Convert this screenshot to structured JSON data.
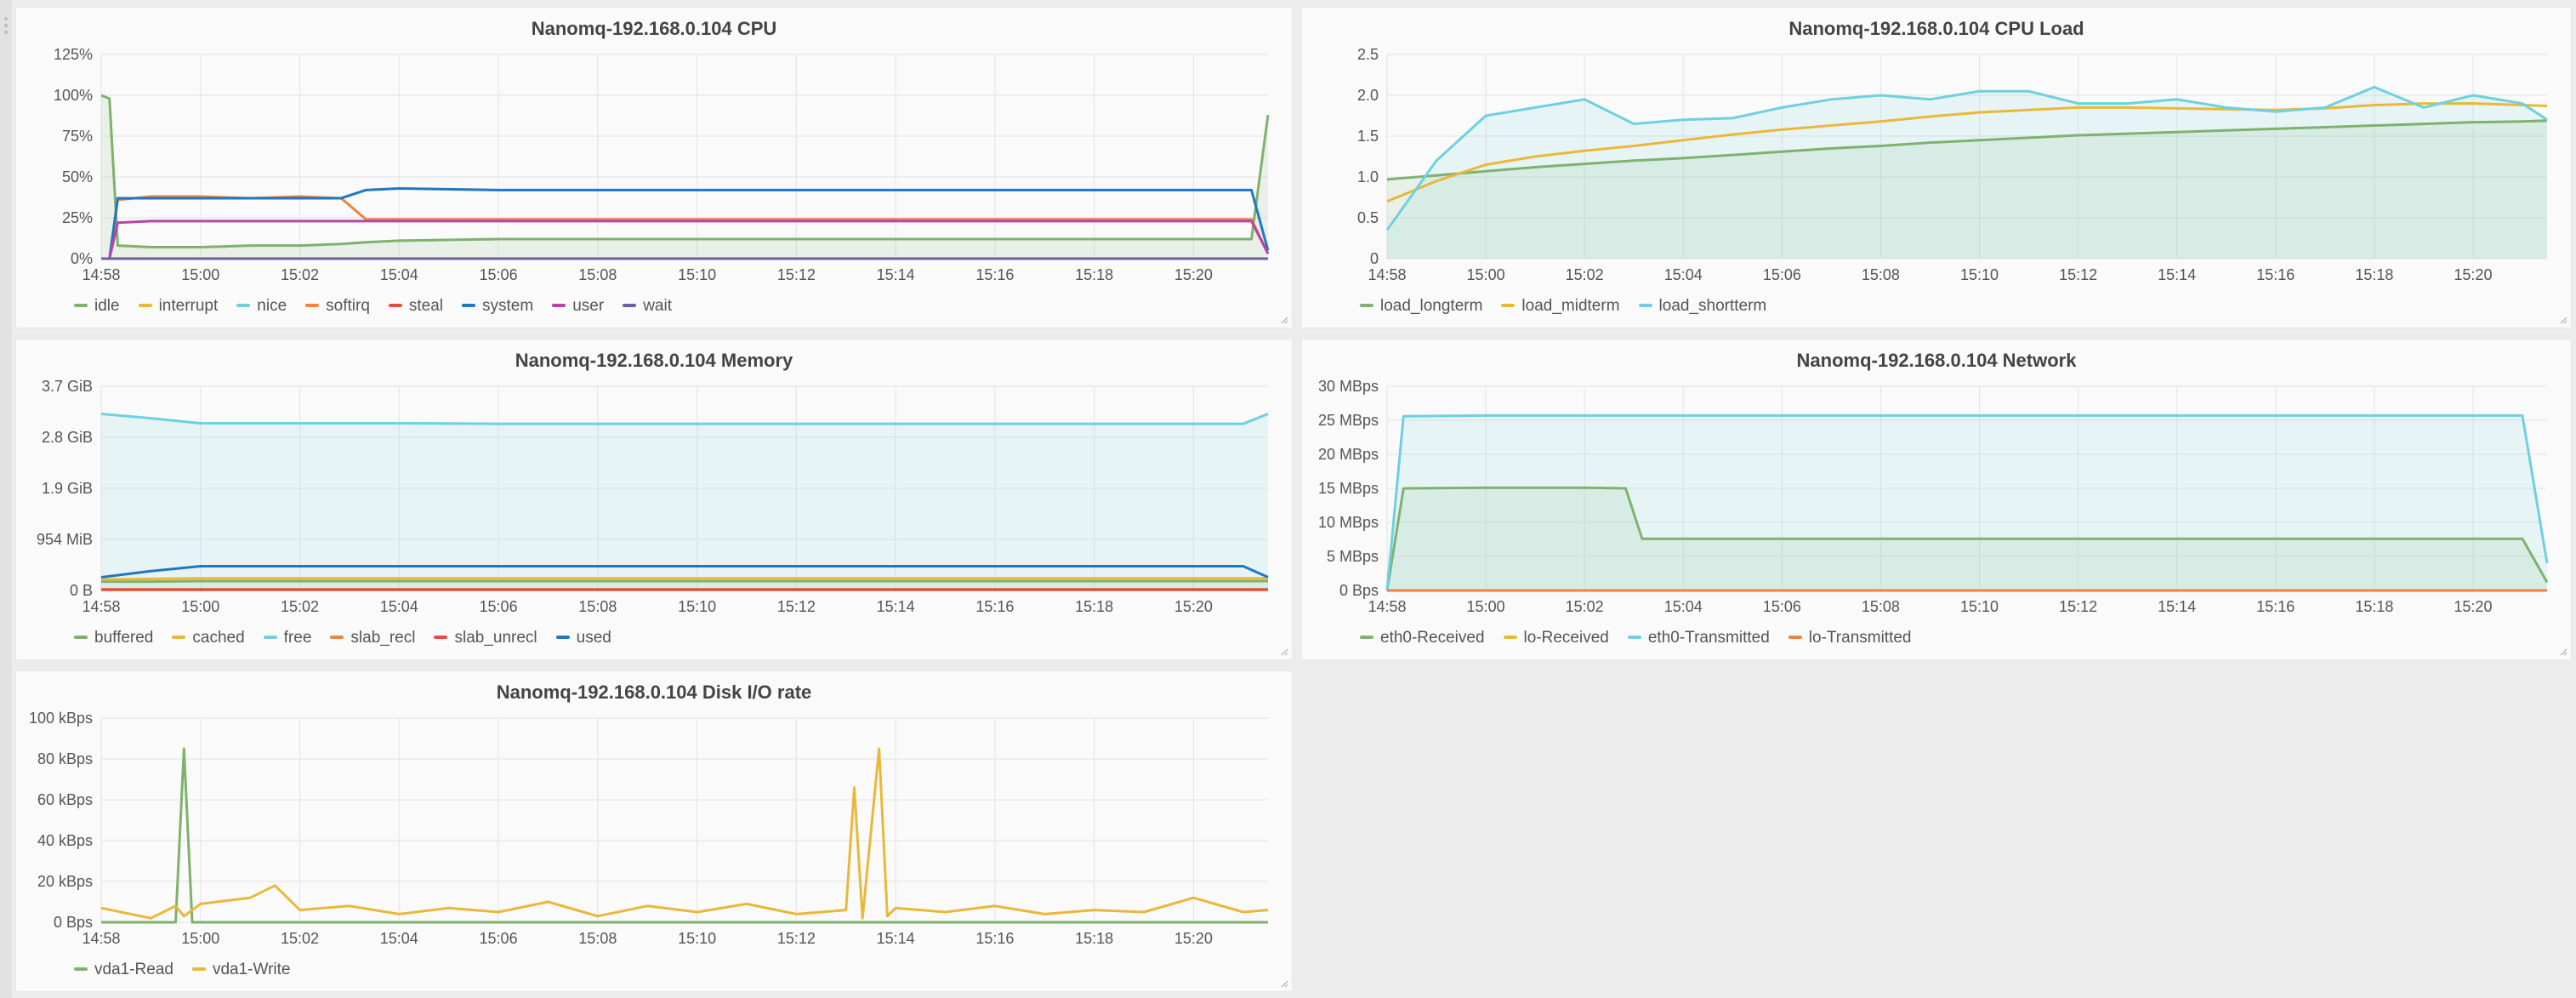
{
  "panels": [
    {
      "key": "cpu",
      "title": "Nanomq-192.168.0.104 CPU",
      "legend": [
        {
          "name": "idle",
          "color": "#7eb26d"
        },
        {
          "name": "interrupt",
          "color": "#eab839"
        },
        {
          "name": "nice",
          "color": "#6ed0e0"
        },
        {
          "name": "softirq",
          "color": "#ef843c"
        },
        {
          "name": "steal",
          "color": "#e24d42"
        },
        {
          "name": "system",
          "color": "#1f78c1"
        },
        {
          "name": "user",
          "color": "#ba43a9"
        },
        {
          "name": "wait",
          "color": "#705da0"
        }
      ]
    },
    {
      "key": "load",
      "title": "Nanomq-192.168.0.104 CPU Load",
      "legend": [
        {
          "name": "load_longterm",
          "color": "#7eb26d"
        },
        {
          "name": "load_midterm",
          "color": "#eab839"
        },
        {
          "name": "load_shortterm",
          "color": "#6ed0e0"
        }
      ]
    },
    {
      "key": "memory",
      "title": "Nanomq-192.168.0.104 Memory",
      "legend": [
        {
          "name": "buffered",
          "color": "#7eb26d"
        },
        {
          "name": "cached",
          "color": "#eab839"
        },
        {
          "name": "free",
          "color": "#6ed0e0"
        },
        {
          "name": "slab_recl",
          "color": "#ef843c"
        },
        {
          "name": "slab_unrecl",
          "color": "#e24d42"
        },
        {
          "name": "used",
          "color": "#1f78c1"
        }
      ]
    },
    {
      "key": "network",
      "title": "Nanomq-192.168.0.104 Network",
      "legend": [
        {
          "name": "eth0-Received",
          "color": "#7eb26d"
        },
        {
          "name": "lo-Received",
          "color": "#eab839"
        },
        {
          "name": "eth0-Transmitted",
          "color": "#6ed0e0"
        },
        {
          "name": "lo-Transmitted",
          "color": "#ef843c"
        }
      ]
    },
    {
      "key": "disk",
      "title": "Nanomq-192.168.0.104 Disk I/O rate",
      "legend": [
        {
          "name": "vda1-Read",
          "color": "#7eb26d"
        },
        {
          "name": "vda1-Write",
          "color": "#eab839"
        }
      ]
    }
  ],
  "chart_data": [
    {
      "type": "line",
      "title": "Nanomq-192.168.0.104 CPU",
      "x_unit": "time (HH:MM)",
      "x_range": [
        "14:58",
        "15:21:30"
      ],
      "x_ticks": [
        "14:58",
        "15:00",
        "15:02",
        "15:04",
        "15:06",
        "15:08",
        "15:10",
        "15:12",
        "15:14",
        "15:16",
        "15:18",
        "15:20"
      ],
      "y_ticks": [
        "0%",
        "25%",
        "50%",
        "75%",
        "100%",
        "125%"
      ],
      "ylim": [
        0,
        125
      ],
      "grid": true,
      "legend_position": "bottom",
      "x": [
        "14:58",
        "14:58:10",
        "14:58:20",
        "14:59",
        "15:00",
        "15:01",
        "15:02",
        "15:02:50",
        "15:03:20",
        "15:04",
        "15:06",
        "15:08",
        "15:10",
        "15:12",
        "15:14",
        "15:16",
        "15:18",
        "15:20",
        "15:21",
        "15:21:10",
        "15:21:30"
      ],
      "series": [
        {
          "name": "idle",
          "fill": true,
          "values": [
            100,
            98,
            8,
            7,
            7,
            8,
            8,
            9,
            10,
            11,
            12,
            12,
            12,
            12,
            12,
            12,
            12,
            12,
            12,
            12,
            88
          ]
        },
        {
          "name": "interrupt",
          "values": [
            0,
            0,
            0,
            0,
            0,
            0,
            0,
            0,
            0,
            0,
            0,
            0,
            0,
            0,
            0,
            0,
            0,
            0,
            0,
            0,
            0
          ]
        },
        {
          "name": "nice",
          "values": [
            0,
            0,
            0,
            0,
            0,
            0,
            0,
            0,
            0,
            0,
            0,
            0,
            0,
            0,
            0,
            0,
            0,
            0,
            0,
            0,
            0
          ]
        },
        {
          "name": "softirq",
          "values": [
            0,
            0,
            36,
            38,
            38,
            37,
            38,
            37,
            24,
            24,
            24,
            24,
            24,
            24,
            24,
            24,
            24,
            24,
            24,
            24,
            3
          ]
        },
        {
          "name": "steal",
          "values": [
            0,
            0,
            0,
            0,
            0,
            0,
            0,
            0,
            0,
            0,
            0,
            0,
            0,
            0,
            0,
            0,
            0,
            0,
            0,
            0,
            0
          ]
        },
        {
          "name": "system",
          "values": [
            0,
            0,
            37,
            37,
            37,
            37,
            37,
            37,
            42,
            43,
            42,
            42,
            42,
            42,
            42,
            42,
            42,
            42,
            42,
            42,
            5
          ]
        },
        {
          "name": "user",
          "values": [
            0,
            0,
            22,
            23,
            23,
            23,
            23,
            23,
            23,
            23,
            23,
            23,
            23,
            23,
            23,
            23,
            23,
            23,
            23,
            23,
            3
          ]
        },
        {
          "name": "wait",
          "values": [
            0,
            0,
            0,
            0,
            0,
            0,
            0,
            0,
            0,
            0,
            0,
            0,
            0,
            0,
            0,
            0,
            0,
            0,
            0,
            0,
            0
          ]
        }
      ]
    },
    {
      "type": "line",
      "title": "Nanomq-192.168.0.104 CPU Load",
      "x_unit": "time (HH:MM)",
      "x_range": [
        "14:58",
        "15:21:30"
      ],
      "x_ticks": [
        "14:58",
        "15:00",
        "15:02",
        "15:04",
        "15:06",
        "15:08",
        "15:10",
        "15:12",
        "15:14",
        "15:16",
        "15:18",
        "15:20"
      ],
      "y_ticks": [
        "0",
        "0.5",
        "1.0",
        "1.5",
        "2.0",
        "2.5"
      ],
      "ylim": [
        0,
        2.5
      ],
      "grid": true,
      "legend_position": "bottom",
      "x": [
        "14:58",
        "14:59",
        "15:00",
        "15:01",
        "15:02",
        "15:03",
        "15:04",
        "15:05",
        "15:06",
        "15:07",
        "15:08",
        "15:09",
        "15:10",
        "15:11",
        "15:12",
        "15:13",
        "15:14",
        "15:15",
        "15:16",
        "15:17",
        "15:18",
        "15:19",
        "15:20",
        "15:21",
        "15:21:30"
      ],
      "series": [
        {
          "name": "load_longterm",
          "fill": true,
          "values": [
            0.97,
            1.02,
            1.07,
            1.12,
            1.16,
            1.2,
            1.23,
            1.27,
            1.31,
            1.35,
            1.38,
            1.42,
            1.45,
            1.48,
            1.51,
            1.53,
            1.55,
            1.57,
            1.59,
            1.61,
            1.63,
            1.65,
            1.67,
            1.68,
            1.69
          ]
        },
        {
          "name": "load_midterm",
          "values": [
            0.7,
            0.95,
            1.15,
            1.25,
            1.32,
            1.38,
            1.45,
            1.52,
            1.58,
            1.63,
            1.68,
            1.74,
            1.79,
            1.82,
            1.85,
            1.85,
            1.84,
            1.83,
            1.82,
            1.84,
            1.88,
            1.9,
            1.9,
            1.88,
            1.87
          ]
        },
        {
          "name": "load_shortterm",
          "fill": true,
          "values": [
            0.35,
            1.2,
            1.75,
            1.85,
            1.95,
            1.65,
            1.7,
            1.72,
            1.85,
            1.95,
            2.0,
            1.95,
            2.05,
            2.05,
            1.9,
            1.9,
            1.95,
            1.85,
            1.8,
            1.85,
            2.1,
            1.85,
            2.0,
            1.9,
            1.7
          ]
        }
      ]
    },
    {
      "type": "line",
      "title": "Nanomq-192.168.0.104 Memory",
      "x_unit": "time (HH:MM)",
      "x_range": [
        "14:58",
        "15:21:30"
      ],
      "x_ticks": [
        "14:58",
        "15:00",
        "15:02",
        "15:04",
        "15:06",
        "15:08",
        "15:10",
        "15:12",
        "15:14",
        "15:16",
        "15:18",
        "15:20"
      ],
      "y_ticks": [
        "0 B",
        "954 MiB",
        "1.9 GiB",
        "2.8 GiB",
        "3.7 GiB"
      ],
      "y_unit": "GiB",
      "ylim": [
        0,
        3.7
      ],
      "grid": true,
      "legend_position": "bottom",
      "x": [
        "14:58",
        "14:59",
        "15:00",
        "15:02",
        "15:04",
        "15:06",
        "15:08",
        "15:10",
        "15:12",
        "15:14",
        "15:16",
        "15:18",
        "15:20",
        "15:21",
        "15:21:30"
      ],
      "series": [
        {
          "name": "buffered",
          "fill": true,
          "values": [
            0.16,
            0.16,
            0.17,
            0.17,
            0.17,
            0.17,
            0.17,
            0.17,
            0.17,
            0.17,
            0.17,
            0.17,
            0.17,
            0.17,
            0.17
          ]
        },
        {
          "name": "cached",
          "values": [
            0.2,
            0.21,
            0.22,
            0.22,
            0.22,
            0.22,
            0.22,
            0.22,
            0.22,
            0.22,
            0.22,
            0.22,
            0.22,
            0.22,
            0.22
          ]
        },
        {
          "name": "free",
          "fill": true,
          "values": [
            3.2,
            3.12,
            3.03,
            3.03,
            3.03,
            3.02,
            3.02,
            3.02,
            3.02,
            3.02,
            3.02,
            3.02,
            3.02,
            3.02,
            3.2
          ]
        },
        {
          "name": "slab_recl",
          "values": [
            0.01,
            0.01,
            0.01,
            0.01,
            0.01,
            0.01,
            0.01,
            0.01,
            0.01,
            0.01,
            0.01,
            0.01,
            0.01,
            0.01,
            0.01
          ]
        },
        {
          "name": "slab_unrecl",
          "values": [
            0.02,
            0.02,
            0.02,
            0.02,
            0.02,
            0.02,
            0.02,
            0.02,
            0.02,
            0.02,
            0.02,
            0.02,
            0.02,
            0.02,
            0.02
          ]
        },
        {
          "name": "used",
          "values": [
            0.24,
            0.35,
            0.44,
            0.44,
            0.44,
            0.44,
            0.44,
            0.44,
            0.44,
            0.44,
            0.44,
            0.44,
            0.44,
            0.44,
            0.24
          ]
        }
      ]
    },
    {
      "type": "line",
      "title": "Nanomq-192.168.0.104 Network",
      "x_unit": "time (HH:MM)",
      "x_range": [
        "14:58",
        "15:21:30"
      ],
      "x_ticks": [
        "14:58",
        "15:00",
        "15:02",
        "15:04",
        "15:06",
        "15:08",
        "15:10",
        "15:12",
        "15:14",
        "15:16",
        "15:18",
        "15:20"
      ],
      "y_ticks": [
        "0 Bps",
        "5 MBps",
        "10 MBps",
        "15 MBps",
        "20 MBps",
        "25 MBps",
        "30 MBps"
      ],
      "y_unit": "MBps",
      "ylim": [
        0,
        30
      ],
      "grid": true,
      "legend_position": "bottom",
      "x": [
        "14:58",
        "14:58:20",
        "15:00",
        "15:02",
        "15:02:50",
        "15:03:10",
        "15:04",
        "15:06",
        "15:08",
        "15:10",
        "15:12",
        "15:14",
        "15:16",
        "15:18",
        "15:20",
        "15:21",
        "15:21:30"
      ],
      "series": [
        {
          "name": "eth0-Received",
          "fill": true,
          "values": [
            0,
            15,
            15.1,
            15.1,
            15,
            7.6,
            7.6,
            7.6,
            7.6,
            7.6,
            7.6,
            7.6,
            7.6,
            7.6,
            7.6,
            7.6,
            1.2
          ]
        },
        {
          "name": "lo-Received",
          "values": [
            0,
            0,
            0,
            0,
            0,
            0,
            0,
            0,
            0,
            0,
            0,
            0,
            0,
            0,
            0,
            0,
            0
          ]
        },
        {
          "name": "eth0-Transmitted",
          "fill": true,
          "values": [
            0,
            25.6,
            25.7,
            25.7,
            25.7,
            25.7,
            25.7,
            25.7,
            25.7,
            25.7,
            25.7,
            25.7,
            25.7,
            25.7,
            25.7,
            25.7,
            4
          ]
        },
        {
          "name": "lo-Transmitted",
          "values": [
            0,
            0,
            0,
            0,
            0,
            0,
            0,
            0,
            0,
            0,
            0,
            0,
            0,
            0,
            0,
            0,
            0
          ]
        }
      ]
    },
    {
      "type": "line",
      "title": "Nanomq-192.168.0.104 Disk I/O rate",
      "x_unit": "time (HH:MM)",
      "x_range": [
        "14:58",
        "15:21:30"
      ],
      "x_ticks": [
        "14:58",
        "15:00",
        "15:02",
        "15:04",
        "15:06",
        "15:08",
        "15:10",
        "15:12",
        "15:14",
        "15:16",
        "15:18",
        "15:20"
      ],
      "y_ticks": [
        "0 Bps",
        "20 kBps",
        "40 kBps",
        "60 kBps",
        "80 kBps",
        "100 kBps"
      ],
      "y_unit": "kBps",
      "ylim": [
        0,
        100
      ],
      "grid": true,
      "legend_position": "bottom",
      "x": [
        "14:58",
        "14:59",
        "14:59:30",
        "14:59:40",
        "14:59:50",
        "15:00",
        "15:01",
        "15:01:30",
        "15:02",
        "15:03",
        "15:04",
        "15:05",
        "15:06",
        "15:07",
        "15:08",
        "15:09",
        "15:10",
        "15:11",
        "15:12",
        "15:13",
        "15:13:10",
        "15:13:20",
        "15:13:40",
        "15:13:50",
        "15:14",
        "15:15",
        "15:16",
        "15:17",
        "15:18",
        "15:19",
        "15:20",
        "15:21",
        "15:21:30"
      ],
      "series": [
        {
          "name": "vda1-Read",
          "values": [
            0,
            0,
            0,
            85,
            0,
            0,
            0,
            0,
            0,
            0,
            0,
            0,
            0,
            0,
            0,
            0,
            0,
            0,
            0,
            0,
            0,
            0,
            0,
            0,
            0,
            0,
            0,
            0,
            0,
            0,
            0,
            0,
            0
          ]
        },
        {
          "name": "vda1-Write",
          "values": [
            7,
            2,
            8,
            3,
            6,
            9,
            12,
            18,
            6,
            8,
            4,
            7,
            5,
            10,
            3,
            8,
            5,
            9,
            4,
            6,
            66,
            2,
            85,
            3,
            7,
            5,
            8,
            4,
            6,
            5,
            12,
            5,
            6
          ]
        }
      ]
    }
  ]
}
